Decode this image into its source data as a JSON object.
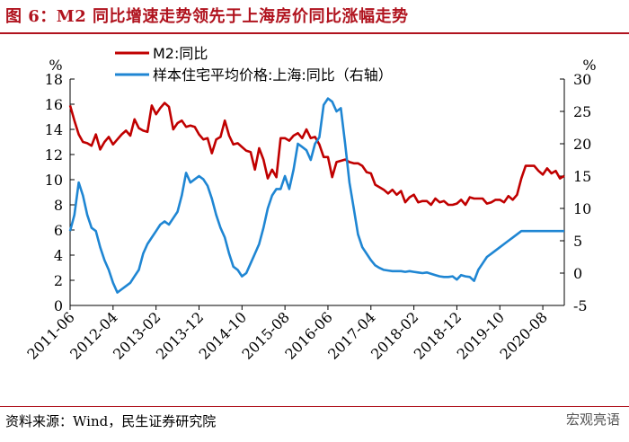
{
  "header": {
    "title": "图 6：M2 同比增速走势领先于上海房价同比涨幅走势"
  },
  "footer": {
    "source": "资料来源：Wind，民生证券研究院",
    "watermark": "宏观亮语"
  },
  "chart_data": {
    "type": "line",
    "left_axis": {
      "unit": "%",
      "range": [
        0,
        18
      ],
      "ticks": [
        "0",
        "2",
        "4",
        "6",
        "8",
        "10",
        "12",
        "14",
        "16",
        "18"
      ]
    },
    "right_axis": {
      "unit": "%",
      "range": [
        -5,
        30
      ],
      "ticks": [
        "-5",
        "0",
        "5",
        "10",
        "15",
        "20",
        "25",
        "30"
      ]
    },
    "x_tick_labels": [
      "2011-06",
      "2012-04",
      "2013-02",
      "2013-12",
      "2014-10",
      "2015-08",
      "2016-06",
      "2017-04",
      "2018-02",
      "2018-12",
      "2019-10",
      "2020-08"
    ],
    "legend_placement": "top",
    "series": [
      {
        "name": "M2:同比",
        "axis": "left",
        "color": "#c00000",
        "values": [
          [
            "2011-06",
            15.9
          ],
          [
            "2011-07",
            14.7
          ],
          [
            "2011-08",
            13.6
          ],
          [
            "2011-09",
            13.0
          ],
          [
            "2011-10",
            12.9
          ],
          [
            "2011-11",
            12.7
          ],
          [
            "2011-12",
            13.6
          ],
          [
            "2012-01",
            12.4
          ],
          [
            "2012-02",
            13.0
          ],
          [
            "2012-03",
            13.4
          ],
          [
            "2012-04",
            12.8
          ],
          [
            "2012-05",
            13.2
          ],
          [
            "2012-06",
            13.6
          ],
          [
            "2012-07",
            13.9
          ],
          [
            "2012-08",
            13.5
          ],
          [
            "2012-09",
            14.8
          ],
          [
            "2012-10",
            14.1
          ],
          [
            "2012-11",
            13.9
          ],
          [
            "2012-12",
            13.8
          ],
          [
            "2013-01",
            15.9
          ],
          [
            "2013-02",
            15.2
          ],
          [
            "2013-03",
            15.7
          ],
          [
            "2013-04",
            16.1
          ],
          [
            "2013-05",
            15.8
          ],
          [
            "2013-06",
            14.0
          ],
          [
            "2013-07",
            14.5
          ],
          [
            "2013-08",
            14.7
          ],
          [
            "2013-09",
            14.2
          ],
          [
            "2013-10",
            14.3
          ],
          [
            "2013-11",
            14.2
          ],
          [
            "2013-12",
            13.6
          ],
          [
            "2014-01",
            13.2
          ],
          [
            "2014-02",
            13.3
          ],
          [
            "2014-03",
            12.1
          ],
          [
            "2014-04",
            13.2
          ],
          [
            "2014-05",
            13.4
          ],
          [
            "2014-06",
            14.7
          ],
          [
            "2014-07",
            13.5
          ],
          [
            "2014-08",
            12.8
          ],
          [
            "2014-09",
            12.9
          ],
          [
            "2014-10",
            12.6
          ],
          [
            "2014-11",
            12.3
          ],
          [
            "2014-12",
            12.2
          ],
          [
            "2015-01",
            10.8
          ],
          [
            "2015-02",
            12.5
          ],
          [
            "2015-03",
            11.6
          ],
          [
            "2015-04",
            10.1
          ],
          [
            "2015-05",
            10.8
          ],
          [
            "2015-06",
            10.2
          ],
          [
            "2015-07",
            13.3
          ],
          [
            "2015-08",
            13.3
          ],
          [
            "2015-09",
            13.1
          ],
          [
            "2015-10",
            13.5
          ],
          [
            "2015-11",
            13.7
          ],
          [
            "2015-12",
            13.3
          ],
          [
            "2016-01",
            14.0
          ],
          [
            "2016-02",
            13.3
          ],
          [
            "2016-03",
            13.4
          ],
          [
            "2016-04",
            12.8
          ],
          [
            "2016-05",
            11.8
          ],
          [
            "2016-06",
            11.8
          ],
          [
            "2016-07",
            10.2
          ],
          [
            "2016-08",
            11.4
          ],
          [
            "2016-09",
            11.5
          ],
          [
            "2016-10",
            11.6
          ],
          [
            "2016-11",
            11.4
          ],
          [
            "2016-12",
            11.3
          ],
          [
            "2017-01",
            11.3
          ],
          [
            "2017-02",
            11.1
          ],
          [
            "2017-03",
            10.6
          ],
          [
            "2017-04",
            10.5
          ],
          [
            "2017-05",
            9.6
          ],
          [
            "2017-06",
            9.4
          ],
          [
            "2017-07",
            9.2
          ],
          [
            "2017-08",
            8.9
          ],
          [
            "2017-09",
            9.2
          ],
          [
            "2017-10",
            8.8
          ],
          [
            "2017-11",
            9.1
          ],
          [
            "2017-12",
            8.2
          ],
          [
            "2018-01",
            8.6
          ],
          [
            "2018-02",
            8.8
          ],
          [
            "2018-03",
            8.2
          ],
          [
            "2018-04",
            8.3
          ],
          [
            "2018-05",
            8.3
          ],
          [
            "2018-06",
            8.0
          ],
          [
            "2018-07",
            8.5
          ],
          [
            "2018-08",
            8.2
          ],
          [
            "2018-09",
            8.3
          ],
          [
            "2018-10",
            8.0
          ],
          [
            "2018-11",
            8.0
          ],
          [
            "2018-12",
            8.1
          ],
          [
            "2019-01",
            8.4
          ],
          [
            "2019-02",
            8.0
          ],
          [
            "2019-03",
            8.6
          ],
          [
            "2019-04",
            8.5
          ],
          [
            "2019-05",
            8.5
          ],
          [
            "2019-06",
            8.5
          ],
          [
            "2019-07",
            8.1
          ],
          [
            "2019-08",
            8.2
          ],
          [
            "2019-09",
            8.4
          ],
          [
            "2019-10",
            8.4
          ],
          [
            "2019-11",
            8.2
          ],
          [
            "2019-12",
            8.7
          ],
          [
            "2020-01",
            8.4
          ],
          [
            "2020-02",
            8.8
          ],
          [
            "2020-03",
            10.1
          ],
          [
            "2020-04",
            11.1
          ],
          [
            "2020-05",
            11.1
          ],
          [
            "2020-06",
            11.1
          ],
          [
            "2020-07",
            10.7
          ],
          [
            "2020-08",
            10.4
          ],
          [
            "2020-09",
            10.9
          ],
          [
            "2020-10",
            10.5
          ],
          [
            "2020-11",
            10.7
          ],
          [
            "2020-12",
            10.1
          ],
          [
            "2021-01",
            10.3
          ]
        ]
      },
      {
        "name": "样本住宅平均价格:上海:同比（右轴）",
        "axis": "right",
        "color": "#1f86d3",
        "values": [
          [
            "2011-06",
            6.5
          ],
          [
            "2011-07",
            9.0
          ],
          [
            "2011-08",
            14.0
          ],
          [
            "2011-09",
            12.0
          ],
          [
            "2011-10",
            9.0
          ],
          [
            "2011-11",
            7.0
          ],
          [
            "2011-12",
            6.5
          ],
          [
            "2012-01",
            4.0
          ],
          [
            "2012-02",
            2.0
          ],
          [
            "2012-03",
            0.5
          ],
          [
            "2012-04",
            -1.5
          ],
          [
            "2012-05",
            -3.0
          ],
          [
            "2012-06",
            -2.5
          ],
          [
            "2012-07",
            -2.0
          ],
          [
            "2012-08",
            -1.5
          ],
          [
            "2012-09",
            -0.5
          ],
          [
            "2012-10",
            0.5
          ],
          [
            "2012-11",
            3.0
          ],
          [
            "2012-12",
            4.5
          ],
          [
            "2013-01",
            5.5
          ],
          [
            "2013-02",
            6.5
          ],
          [
            "2013-03",
            7.5
          ],
          [
            "2013-04",
            8.0
          ],
          [
            "2013-05",
            7.5
          ],
          [
            "2013-06",
            8.5
          ],
          [
            "2013-07",
            9.5
          ],
          [
            "2013-08",
            12.0
          ],
          [
            "2013-09",
            15.5
          ],
          [
            "2013-10",
            14.0
          ],
          [
            "2013-11",
            14.5
          ],
          [
            "2013-12",
            15.0
          ],
          [
            "2014-01",
            14.5
          ],
          [
            "2014-02",
            13.5
          ],
          [
            "2014-03",
            11.5
          ],
          [
            "2014-04",
            9.0
          ],
          [
            "2014-05",
            7.0
          ],
          [
            "2014-06",
            5.5
          ],
          [
            "2014-07",
            3.0
          ],
          [
            "2014-08",
            1.0
          ],
          [
            "2014-09",
            0.5
          ],
          [
            "2014-10",
            -0.5
          ],
          [
            "2014-11",
            0.0
          ],
          [
            "2014-12",
            1.5
          ],
          [
            "2015-01",
            3.0
          ],
          [
            "2015-02",
            4.5
          ],
          [
            "2015-03",
            7.0
          ],
          [
            "2015-04",
            10.0
          ],
          [
            "2015-05",
            12.0
          ],
          [
            "2015-06",
            13.0
          ],
          [
            "2015-07",
            13.0
          ],
          [
            "2015-08",
            15.0
          ],
          [
            "2015-09",
            13.0
          ],
          [
            "2015-10",
            16.0
          ],
          [
            "2015-11",
            20.0
          ],
          [
            "2015-12",
            19.5
          ],
          [
            "2016-01",
            19.0
          ],
          [
            "2016-02",
            17.5
          ],
          [
            "2016-03",
            20.0
          ],
          [
            "2016-04",
            21.0
          ],
          [
            "2016-05",
            26.0
          ],
          [
            "2016-06",
            27.0
          ],
          [
            "2016-07",
            26.5
          ],
          [
            "2016-08",
            25.0
          ],
          [
            "2016-09",
            25.5
          ],
          [
            "2016-10",
            20.0
          ],
          [
            "2016-11",
            14.0
          ],
          [
            "2016-12",
            10.0
          ],
          [
            "2017-01",
            6.0
          ],
          [
            "2017-02",
            4.0
          ],
          [
            "2017-03",
            3.0
          ],
          [
            "2017-04",
            2.0
          ],
          [
            "2017-05",
            1.2
          ],
          [
            "2017-06",
            0.8
          ],
          [
            "2017-07",
            0.5
          ],
          [
            "2017-08",
            0.4
          ],
          [
            "2017-09",
            0.3
          ],
          [
            "2017-10",
            0.3
          ],
          [
            "2017-11",
            0.3
          ],
          [
            "2017-12",
            0.2
          ],
          [
            "2018-01",
            0.3
          ],
          [
            "2018-02",
            0.2
          ],
          [
            "2018-03",
            0.1
          ],
          [
            "2018-04",
            0.0
          ],
          [
            "2018-05",
            0.1
          ],
          [
            "2018-06",
            -0.1
          ],
          [
            "2018-07",
            -0.3
          ],
          [
            "2018-08",
            -0.5
          ],
          [
            "2018-09",
            -0.6
          ],
          [
            "2018-10",
            -0.6
          ],
          [
            "2018-11",
            -0.5
          ],
          [
            "2018-12",
            -1.0
          ],
          [
            "2019-01",
            -0.3
          ],
          [
            "2019-02",
            -0.5
          ],
          [
            "2019-03",
            -0.6
          ],
          [
            "2019-04",
            -1.2
          ],
          [
            "2019-05",
            0.5
          ],
          [
            "2019-06",
            1.5
          ],
          [
            "2019-07",
            2.5
          ],
          [
            "2019-08",
            3.0
          ],
          [
            "2019-09",
            3.5
          ],
          [
            "2019-10",
            4.0
          ],
          [
            "2019-11",
            4.5
          ],
          [
            "2019-12",
            5.0
          ],
          [
            "2020-01",
            5.5
          ],
          [
            "2020-02",
            6.0
          ],
          [
            "2020-03",
            6.5
          ],
          [
            "2020-04",
            6.5
          ],
          [
            "2020-05",
            6.5
          ],
          [
            "2020-06",
            6.5
          ],
          [
            "2020-07",
            6.5
          ],
          [
            "2020-08",
            6.5
          ],
          [
            "2020-09",
            6.5
          ],
          [
            "2020-10",
            6.5
          ],
          [
            "2020-11",
            6.5
          ],
          [
            "2020-12",
            6.5
          ],
          [
            "2021-01",
            6.5
          ]
        ]
      }
    ]
  }
}
